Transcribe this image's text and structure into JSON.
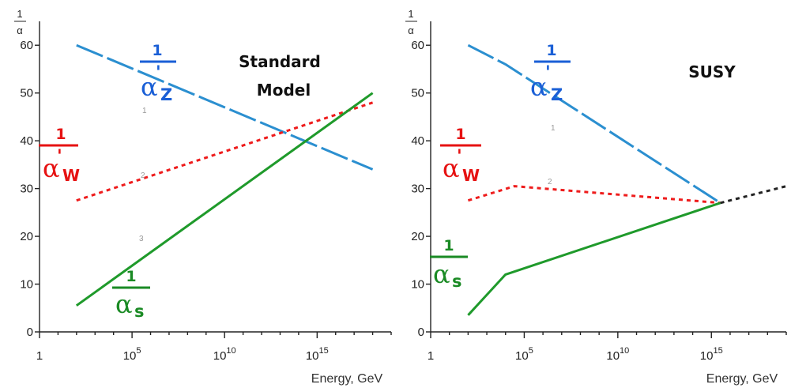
{
  "colors": {
    "alpha_z": "#2b8fd0",
    "alpha_w": "#ee1c1c",
    "alpha_s": "#1f9a2b",
    "extension": "#222222"
  },
  "inverse_alpha_symbol": {
    "numerator": "1",
    "denominator": "α"
  },
  "series_labels": {
    "alpha_z": {
      "num": "1",
      "sym": "α",
      "sub": "Z",
      "prime": "'"
    },
    "alpha_w": {
      "num": "1",
      "sym": "α",
      "sub": "W",
      "prime": "'"
    },
    "alpha_s": {
      "num": "1",
      "sym": "α",
      "sub": "s"
    }
  },
  "curve_numbers": [
    "1",
    "2",
    "3"
  ],
  "chart_data": [
    {
      "type": "line",
      "title": "Standard Model",
      "title_lines": [
        "Standard",
        "Model"
      ],
      "xlabel": "Energy, GeV",
      "ylabel": "1/α",
      "x_scale": "log",
      "xlim": [
        1,
        1e+19
      ],
      "ylim": [
        0,
        65
      ],
      "x_ticks": [
        {
          "v": 1,
          "mant": "1",
          "exp": ""
        },
        {
          "v": 100000.0,
          "mant": "10",
          "exp": "5"
        },
        {
          "v": 10000000000.0,
          "mant": "10",
          "exp": "10"
        },
        {
          "v": 1000000000000000.0,
          "mant": "10",
          "exp": "15"
        }
      ],
      "y_ticks": [
        0,
        10,
        20,
        30,
        40,
        50,
        60
      ],
      "grid": false,
      "series": [
        {
          "key": "alpha_z",
          "style": "dash",
          "points": [
            {
              "x": 100,
              "y": 60
            },
            {
              "x": 1e+18,
              "y": 34
            }
          ]
        },
        {
          "key": "alpha_w",
          "style": "dot",
          "points": [
            {
              "x": 100,
              "y": 27.5
            },
            {
              "x": 1e+18,
              "y": 48
            }
          ]
        },
        {
          "key": "alpha_s",
          "style": "solid",
          "points": [
            {
              "x": 100,
              "y": 5.5
            },
            {
              "x": 1e+18,
              "y": 50
            }
          ]
        }
      ]
    },
    {
      "type": "line",
      "title": "SUSY",
      "title_lines": [
        "SUSY"
      ],
      "xlabel": "Energy, GeV",
      "ylabel": "1/α",
      "x_scale": "log",
      "xlim": [
        1,
        1e+19
      ],
      "ylim": [
        0,
        65
      ],
      "x_ticks": [
        {
          "v": 1,
          "mant": "1",
          "exp": ""
        },
        {
          "v": 100000.0,
          "mant": "10",
          "exp": "5"
        },
        {
          "v": 10000000000.0,
          "mant": "10",
          "exp": "10"
        },
        {
          "v": 1000000000000000.0,
          "mant": "10",
          "exp": "15"
        }
      ],
      "y_ticks": [
        0,
        10,
        20,
        30,
        40,
        50,
        60
      ],
      "grid": false,
      "series": [
        {
          "key": "alpha_z",
          "style": "dash",
          "points": [
            {
              "x": 100,
              "y": 60
            },
            {
              "x": 10000,
              "y": 56
            },
            {
              "x": 3000000000000000.0,
              "y": 27
            }
          ]
        },
        {
          "key": "alpha_w",
          "style": "dot",
          "points": [
            {
              "x": 100,
              "y": 27.5
            },
            {
              "x": 30000,
              "y": 30.5
            },
            {
              "x": 3000000000000000.0,
              "y": 27
            }
          ]
        },
        {
          "key": "alpha_s",
          "style": "solid",
          "points": [
            {
              "x": 100,
              "y": 3.5
            },
            {
              "x": 10000,
              "y": 12
            },
            {
              "x": 3000000000000000.0,
              "y": 27
            }
          ]
        },
        {
          "key": "extension",
          "style": "dot",
          "points": [
            {
              "x": 3000000000000000.0,
              "y": 27
            },
            {
              "x": 1e+19,
              "y": 30.5
            }
          ]
        }
      ]
    }
  ]
}
